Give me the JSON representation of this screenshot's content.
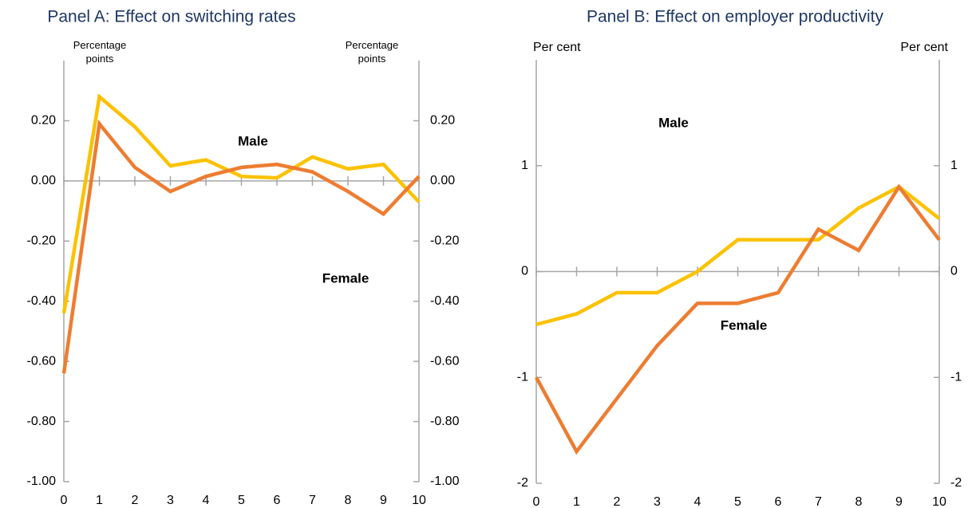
{
  "chart_data": [
    {
      "type": "line",
      "title": "Panel A: Effect on switching rates",
      "y_label": "Percentage points",
      "x": [
        0,
        1,
        2,
        3,
        4,
        5,
        6,
        7,
        8,
        9,
        10
      ],
      "xlim": [
        0,
        10
      ],
      "xticks": [
        0,
        1,
        2,
        3,
        4,
        5,
        6,
        7,
        8,
        9,
        10
      ],
      "ylim": [
        -1.0,
        0.4
      ],
      "yticks": [
        {
          "value": -1.0,
          "label": "-1.00"
        },
        {
          "value": -0.8,
          "label": "-0.80"
        },
        {
          "value": -0.6,
          "label": "-0.60"
        },
        {
          "value": -0.4,
          "label": "-0.40"
        },
        {
          "value": -0.2,
          "label": "-0.20"
        },
        {
          "value": 0,
          "label": "0.00"
        },
        {
          "value": 0.2,
          "label": "0.20"
        }
      ],
      "series": [
        {
          "name": "Male",
          "color": "#fbc200",
          "values": [
            -0.44,
            0.28,
            0.18,
            0.05,
            0.07,
            0.015,
            0.01,
            0.08,
            0.04,
            0.055,
            -0.07
          ]
        },
        {
          "name": "Female",
          "color": "#ed7d31",
          "values": [
            -0.64,
            0.19,
            0.045,
            -0.035,
            0.015,
            0.045,
            0.055,
            0.03,
            -0.035,
            -0.11,
            0.015
          ]
        }
      ]
    },
    {
      "type": "line",
      "title": "Panel B: Effect on employer productivity",
      "y_label": "Per cent",
      "x": [
        0,
        1,
        2,
        3,
        4,
        5,
        6,
        7,
        8,
        9,
        10
      ],
      "xlim": [
        0,
        10
      ],
      "xticks": [
        0,
        1,
        2,
        3,
        4,
        5,
        6,
        7,
        8,
        9,
        10
      ],
      "ylim": [
        -2,
        2
      ],
      "yticks": [
        -2,
        -1,
        0,
        1
      ],
      "series": [
        {
          "name": "Male",
          "color": "#fbc200",
          "values": [
            -0.5,
            -0.4,
            -0.2,
            -0.2,
            0,
            0.3,
            0.3,
            0.3,
            0.6,
            0.8,
            0.5
          ]
        },
        {
          "name": "Female",
          "color": "#ed7d31",
          "values": [
            -1,
            -1.7,
            -1.2,
            -0.7,
            -0.3,
            -0.3,
            -0.2,
            0.4,
            0.2,
            0.8,
            0.3
          ]
        }
      ]
    }
  ]
}
